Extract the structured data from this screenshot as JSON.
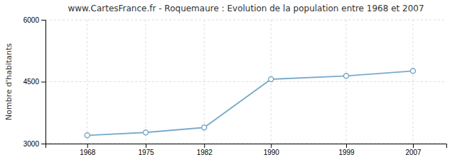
{
  "chart_data": {
    "type": "line",
    "title": "www.CartesFrance.fr - Roquemaure : Evolution de la population entre 1968 et 2007",
    "y_label": "Nombre d'habitants",
    "x": [
      1968,
      1975,
      1982,
      1990,
      1999,
      2007
    ],
    "values": [
      3200,
      3270,
      3390,
      4560,
      4640,
      4760
    ],
    "color": "#7aaac8",
    "marker": "circle",
    "xlim": [
      1963,
      2011
    ],
    "xticks": [
      1968,
      1975,
      1982,
      1990,
      1999,
      2007
    ],
    "ylim": [
      3000,
      6000
    ],
    "yticks": [
      3000,
      4500,
      6000
    ],
    "grid": true
  }
}
